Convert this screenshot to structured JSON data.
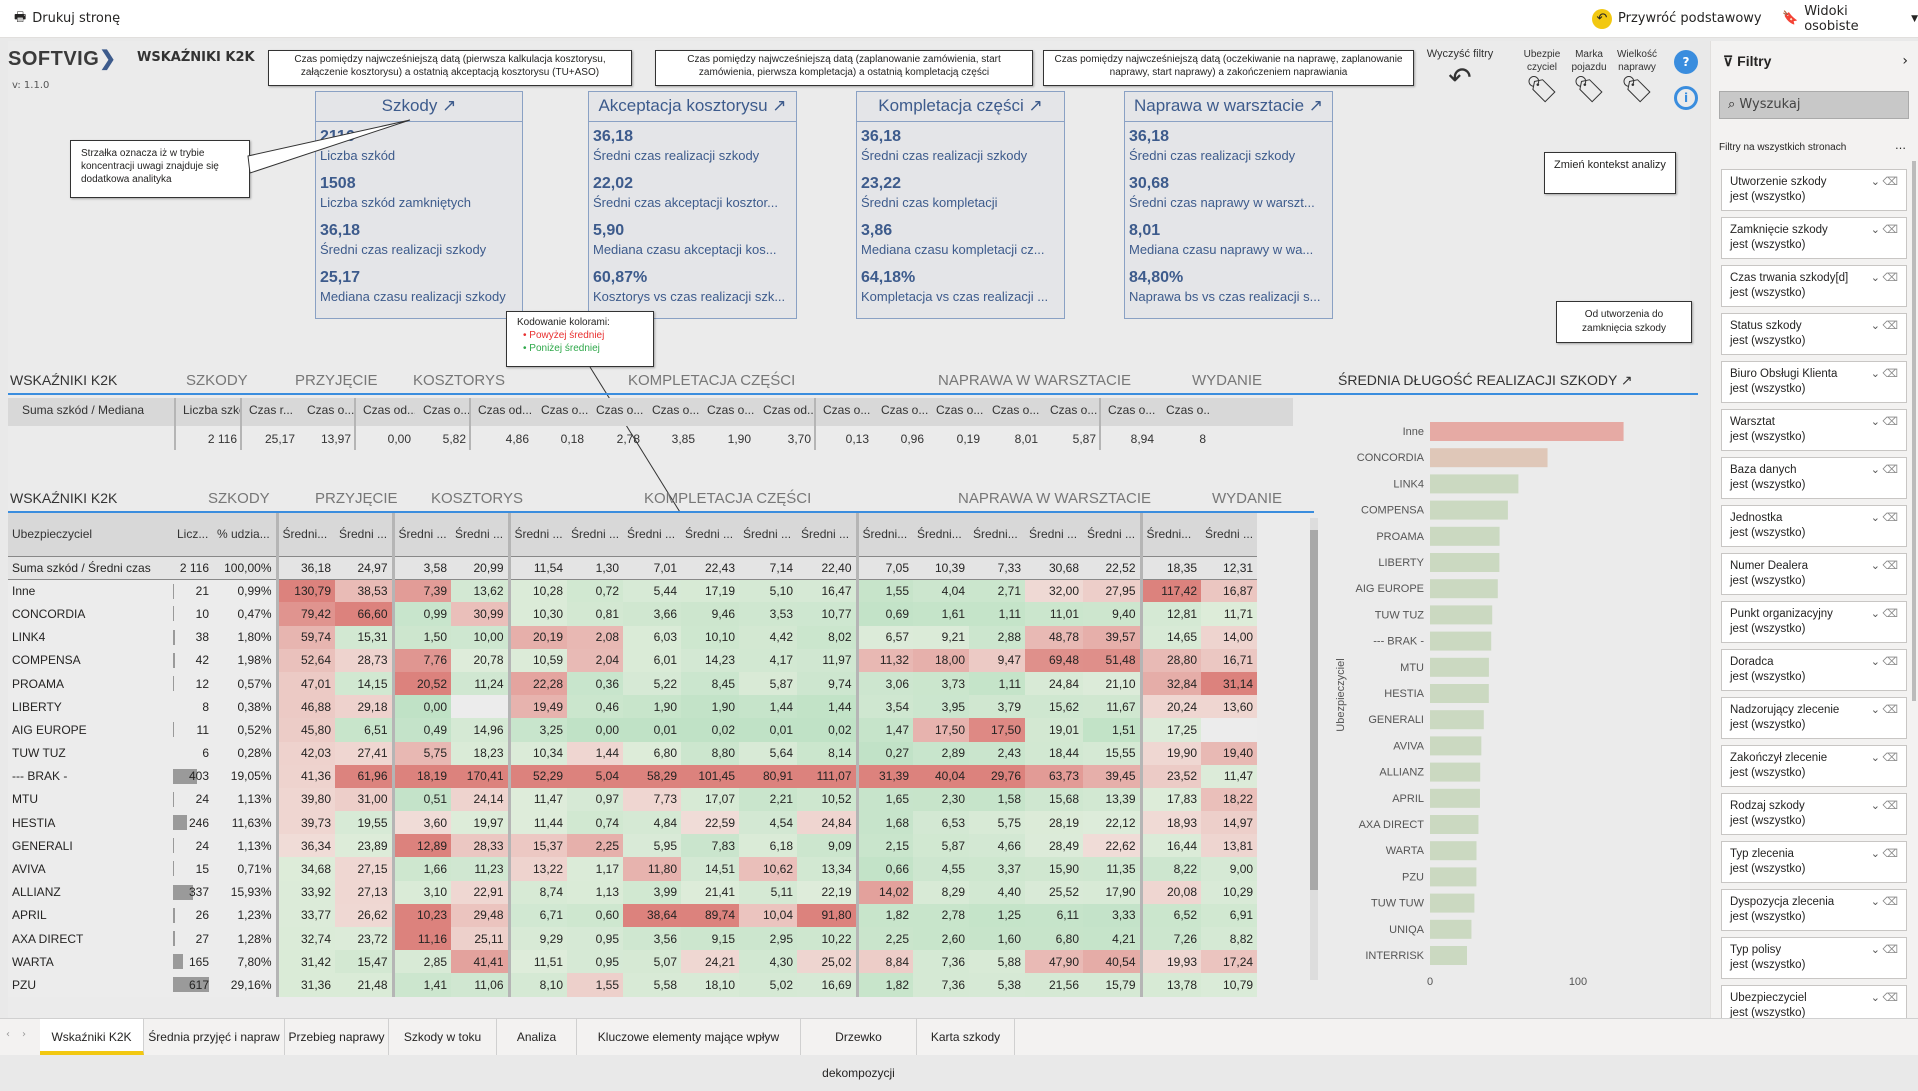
{
  "toolbar": {
    "print": "Drukuj stronę",
    "reset": "Przywróć podstawowy",
    "views": "Widoki osobiste"
  },
  "header": {
    "logo": "SOFTVIG",
    "version": "v: 1.1.0",
    "title": "WSKAŹNIKI K2K"
  },
  "buttons": {
    "clear": "Wyczyść filtry",
    "insurer": "Ubezpie czyciel",
    "brand": "Marka pojazdu",
    "size": "Wielkość naprawy"
  },
  "callouts": {
    "c1": "Czas pomiędzy najwcześniejszą datą (pierwsza kalkulacja kosztorysu, załączenie kosztorysu) a ostatnią akceptacją kosztorysu (TU+ASO)",
    "c2": "Czas pomiędzy najwcześniejszą datą (zaplanowanie zamówienia, start zamówienia, pierwsza kompletacja) a ostatnią kompletacją części",
    "c3": "Czas pomiędzy najwcześniejszą datą (oczekiwanie na naprawę, zaplanowanie naprawy, start naprawy) a zakończeniem naprawiania",
    "c4": "Strzałka oznacza iż w trybie koncentracji uwagi znajduje się dodatkowa analityka",
    "c5": "Zmień kontekst analizy",
    "c6_title": "Kodowanie kolorami:",
    "c6_a": "Powyżej średniej",
    "c6_b": "Poniżej średniej",
    "c7": "Od utworzenia do zamknięcia szkody"
  },
  "cards": [
    {
      "title": "Szkody ↗",
      "items": [
        {
          "v": "2116",
          "l": "Liczba szkód"
        },
        {
          "v": "1508",
          "l": "Liczba szkód zamkniętych"
        },
        {
          "v": "36,18",
          "l": "Średni czas realizacji szkody"
        },
        {
          "v": "25,17",
          "l": "Mediana czasu realizacji szkody"
        }
      ]
    },
    {
      "title": "Akceptacja kosztorysu ↗",
      "items": [
        {
          "v": "36,18",
          "l": "Średni czas realizacji szkody"
        },
        {
          "v": "22,02",
          "l": "Średni czas akceptacji kosztor..."
        },
        {
          "v": "5,90",
          "l": "Mediana czasu akceptacji kos..."
        },
        {
          "v": "60,87%",
          "l": "Kosztorys vs czas realizacji szk..."
        }
      ]
    },
    {
      "title": "Kompletacja części ↗",
      "items": [
        {
          "v": "36,18",
          "l": "Średni czas realizacji szkody"
        },
        {
          "v": "23,22",
          "l": "Średni czas kompletacji"
        },
        {
          "v": "3,86",
          "l": "Mediana czasu kompletacji cz..."
        },
        {
          "v": "64,18%",
          "l": "Kompletacja vs czas realizacji ..."
        }
      ]
    },
    {
      "title": "Naprawa w warsztacie ↗",
      "items": [
        {
          "v": "36,18",
          "l": "Średni czas realizacji szkody"
        },
        {
          "v": "30,68",
          "l": "Średni czas naprawy w warszt..."
        },
        {
          "v": "8,01",
          "l": "Mediana czasu naprawy w wa..."
        },
        {
          "v": "84,80%",
          "l": "Naprawa bs vs czas realizacji s..."
        }
      ]
    }
  ],
  "sections1": {
    "title": "WSKAŹNIKI K2K",
    "s1": "SZKODY",
    "s2": "PRZYJĘCIE",
    "s3": "KOSZTORYS",
    "s4": "KOMPLETACJA CZĘŚCI",
    "s5": "NAPRAWA W WARSZTACIE",
    "s6": "WYDANIE"
  },
  "sumtable": {
    "headers": [
      "Suma szkód / Mediana",
      "Liczba szkód",
      "Czas r...",
      "Czas o...",
      "Czas od...",
      "Czas o...",
      "Czas od...",
      "Czas o...",
      "Czas o...",
      "Czas o...",
      "Czas o...",
      "Czas od...",
      "Czas o...",
      "Czas o...",
      "Czas o...",
      "Czas o...",
      "Czas o...",
      "Czas o...",
      "Czas o..."
    ],
    "values": [
      "",
      "2 116",
      "25,17",
      "13,97",
      "0,00",
      "5,82",
      "4,86",
      "0,18",
      "2,78",
      "3,85",
      "1,90",
      "3,70",
      "0,13",
      "0,96",
      "0,19",
      "8,01",
      "5,87",
      "8,94",
      "8"
    ]
  },
  "sections2": {
    "title": "WSKAŹNIKI K2K",
    "s1": "SZKODY",
    "s2": "PRZYJĘCIE",
    "s3": "KOSZTORYS",
    "s4": "KOMPLETACJA CZĘŚCI",
    "s5": "NAPRAWA W WARSZTACIE",
    "s6": "WYDANIE"
  },
  "main": {
    "headers": [
      "Ubezpieczyciel",
      "Licz...",
      "% udzia...",
      "Średni...",
      "Średni ...",
      "Średni ...",
      "Średni ...",
      "Średni ...",
      "Średni ...",
      "Średni ...",
      "Średni ...",
      "Średni ...",
      "Średni ...",
      "Średni...",
      "Średni...",
      "Średni...",
      "Średni ...",
      "Średni ...",
      "Średni...",
      "Średni ..."
    ],
    "total": [
      "Suma szkód / Średni czas",
      "2 116",
      "100,00%",
      "36,18",
      "24,97",
      "3,58",
      "20,99",
      "11,54",
      "1,30",
      "7,01",
      "22,43",
      "7,14",
      "22,40",
      "7,05",
      "10,39",
      "7,33",
      "30,68",
      "22,52",
      "18,35",
      "12,31"
    ],
    "rows": [
      [
        "Inne",
        "21",
        "0,99%",
        "130,79",
        "38,53",
        "7,39",
        "13,62",
        "10,28",
        "0,72",
        "5,44",
        "17,19",
        "5,10",
        "16,47",
        "1,55",
        "4,04",
        "2,71",
        "32,00",
        "27,95",
        "117,42",
        "16,87"
      ],
      [
        "CONCORDIA",
        "10",
        "0,47%",
        "79,42",
        "66,60",
        "0,99",
        "30,99",
        "10,30",
        "0,81",
        "3,66",
        "9,46",
        "3,53",
        "10,77",
        "0,69",
        "1,61",
        "1,11",
        "11,01",
        "9,40",
        "12,81",
        "11,71"
      ],
      [
        "LINK4",
        "38",
        "1,80%",
        "59,74",
        "15,31",
        "1,50",
        "10,00",
        "20,19",
        "2,08",
        "6,03",
        "10,10",
        "4,42",
        "8,02",
        "6,57",
        "9,21",
        "2,88",
        "48,78",
        "39,57",
        "14,65",
        "14,00"
      ],
      [
        "COMPENSA",
        "42",
        "1,98%",
        "52,64",
        "28,73",
        "7,76",
        "20,78",
        "10,59",
        "2,04",
        "6,01",
        "14,23",
        "4,17",
        "11,97",
        "11,32",
        "18,00",
        "9,47",
        "69,48",
        "51,48",
        "28,80",
        "16,71"
      ],
      [
        "PROAMA",
        "12",
        "0,57%",
        "47,01",
        "14,15",
        "20,52",
        "11,24",
        "22,28",
        "0,36",
        "5,22",
        "8,45",
        "5,87",
        "9,74",
        "3,06",
        "3,73",
        "1,11",
        "24,84",
        "21,10",
        "32,84",
        "31,14"
      ],
      [
        "LIBERTY",
        "8",
        "0,38%",
        "46,88",
        "29,18",
        "0,00",
        "",
        "19,49",
        "0,46",
        "1,90",
        "1,90",
        "1,44",
        "1,44",
        "3,54",
        "3,95",
        "3,79",
        "15,62",
        "11,67",
        "20,24",
        "13,60"
      ],
      [
        "AIG EUROPE",
        "11",
        "0,52%",
        "45,80",
        "6,51",
        "0,49",
        "14,96",
        "3,25",
        "0,00",
        "0,01",
        "0,02",
        "0,01",
        "0,02",
        "1,47",
        "17,50",
        "17,50",
        "19,01",
        "1,51",
        "17,25",
        ""
      ],
      [
        "TUW TUZ",
        "6",
        "0,28%",
        "42,03",
        "27,41",
        "5,75",
        "18,23",
        "10,34",
        "1,44",
        "6,80",
        "8,80",
        "5,64",
        "8,14",
        "0,27",
        "2,89",
        "2,43",
        "18,44",
        "15,55",
        "19,90",
        "19,40"
      ],
      [
        "--- BRAK -",
        "403",
        "19,05%",
        "41,36",
        "61,96",
        "18,19",
        "170,41",
        "52,29",
        "5,04",
        "58,29",
        "101,45",
        "80,91",
        "111,07",
        "31,39",
        "40,04",
        "29,76",
        "63,73",
        "39,45",
        "23,52",
        "11,47"
      ],
      [
        "MTU",
        "24",
        "1,13%",
        "39,80",
        "31,00",
        "0,51",
        "24,14",
        "11,47",
        "0,97",
        "7,73",
        "17,07",
        "2,21",
        "10,52",
        "1,65",
        "2,30",
        "1,58",
        "15,68",
        "13,39",
        "17,83",
        "18,22"
      ],
      [
        "HESTIA",
        "246",
        "11,63%",
        "39,73",
        "19,55",
        "3,60",
        "19,97",
        "11,44",
        "0,74",
        "4,84",
        "22,59",
        "4,54",
        "24,84",
        "1,68",
        "6,53",
        "5,75",
        "28,19",
        "22,12",
        "18,93",
        "14,97"
      ],
      [
        "GENERALI",
        "24",
        "1,13%",
        "36,34",
        "23,89",
        "12,89",
        "28,33",
        "15,37",
        "2,25",
        "5,95",
        "7,83",
        "6,18",
        "9,09",
        "2,15",
        "5,87",
        "4,66",
        "28,49",
        "22,62",
        "16,44",
        "13,81"
      ],
      [
        "AVIVA",
        "15",
        "0,71%",
        "34,68",
        "27,15",
        "1,66",
        "11,23",
        "13,22",
        "1,17",
        "11,80",
        "14,51",
        "10,62",
        "13,34",
        "0,66",
        "4,55",
        "3,37",
        "15,90",
        "11,35",
        "8,22",
        "9,00"
      ],
      [
        "ALLIANZ",
        "337",
        "15,93%",
        "33,92",
        "27,13",
        "3,10",
        "22,91",
        "8,74",
        "1,13",
        "3,99",
        "21,41",
        "5,11",
        "22,19",
        "14,02",
        "8,29",
        "4,40",
        "25,52",
        "17,90",
        "20,08",
        "10,29"
      ],
      [
        "APRIL",
        "26",
        "1,23%",
        "33,77",
        "26,62",
        "10,23",
        "29,48",
        "6,71",
        "0,60",
        "38,64",
        "89,74",
        "10,04",
        "91,80",
        "1,82",
        "2,78",
        "1,25",
        "6,11",
        "3,33",
        "6,52",
        "6,91"
      ],
      [
        "AXA DIRECT",
        "27",
        "1,28%",
        "32,74",
        "23,72",
        "11,16",
        "25,11",
        "9,29",
        "0,95",
        "3,56",
        "9,15",
        "2,95",
        "10,22",
        "2,25",
        "2,60",
        "1,60",
        "6,80",
        "4,21",
        "7,26",
        "8,82"
      ],
      [
        "WARTA",
        "165",
        "7,80%",
        "31,42",
        "15,47",
        "2,85",
        "41,41",
        "11,51",
        "0,95",
        "5,07",
        "24,21",
        "4,30",
        "25,02",
        "8,84",
        "7,36",
        "5,88",
        "47,90",
        "40,54",
        "19,93",
        "17,24"
      ],
      [
        "PZU",
        "617",
        "29,16%",
        "31,36",
        "21,48",
        "1,41",
        "11,06",
        "8,10",
        "1,55",
        "5,58",
        "18,10",
        "5,02",
        "16,69",
        "1,82",
        "7,36",
        "5,38",
        "21,56",
        "15,79",
        "13,78",
        "10,79"
      ]
    ]
  },
  "bar_chart": {
    "title": "ŚREDNIA DŁUGOŚĆ REALIZACJI SZKODY ↗",
    "ylabel": "Ubezpieczyciel",
    "tick0": "0",
    "tick100": "100",
    "categories": [
      "Inne",
      "CONCORDIA",
      "LINK4",
      "COMPENSA",
      "PROAMA",
      "LIBERTY",
      "AIG EUROPE",
      "TUW TUZ",
      "--- BRAK -",
      "MTU",
      "HESTIA",
      "GENERALI",
      "AVIVA",
      "ALLIANZ",
      "APRIL",
      "AXA DIRECT",
      "WARTA",
      "PZU",
      "TUW TUW",
      "UNIQA",
      "INTERRISK"
    ],
    "values": [
      130.79,
      79.42,
      59.74,
      52.64,
      47.01,
      46.88,
      45.8,
      42.03,
      41.36,
      39.8,
      39.73,
      36.34,
      34.68,
      33.92,
      33.77,
      32.74,
      31.42,
      31.36,
      30,
      28,
      25
    ],
    "xlim": [
      0,
      140
    ]
  },
  "filters": {
    "title": "Filtry",
    "search": "Wyszukaj",
    "section": "Filtry na wszystkich stronach",
    "state": "jest (wszystko)",
    "items": [
      "Utworzenie szkody",
      "Zamknięcie szkody",
      "Czas trwania szkody[d]",
      "Status szkody",
      "Biuro Obsługi Klienta",
      "Warsztat",
      "Baza danych",
      "Jednostka",
      "Numer Dealera",
      "Punkt organizacyjny",
      "Doradca",
      "Nadzorujący zlecenie",
      "Zakończył zlecenie",
      "Rodzaj szkody",
      "Typ zlecenia",
      "Dyspozycja zlecenia",
      "Typ polisy",
      "Ubezpieczyciel"
    ]
  },
  "tabs": [
    "Wskaźniki K2K",
    "Średnia przyjęć i napraw",
    "Przebieg naprawy",
    "Szkody w toku",
    "Analiza",
    "Kluczowe elementy mające wpływ",
    "Drzewko dekompozycji",
    "Karta szkody"
  ]
}
